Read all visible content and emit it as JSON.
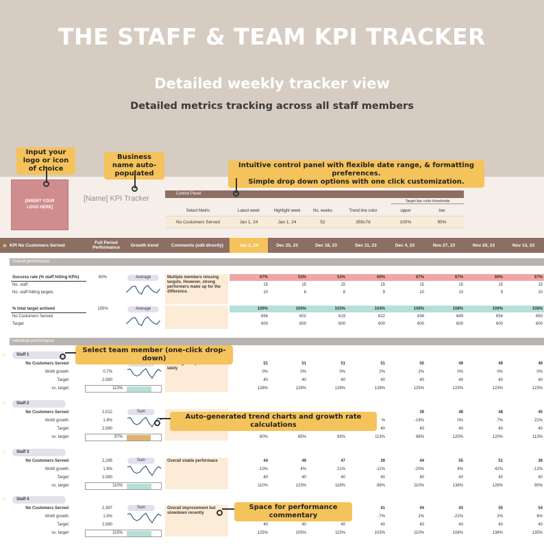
{
  "hero": {
    "title": "THE STAFF & TEAM KPI TRACKER",
    "subtitle": "Detailed weekly tracker view",
    "subtitle2": "Detailed metrics tracking across all staff members"
  },
  "callouts": {
    "logo": "Input your logo or icon of choice",
    "business_name": "Business name auto-populated",
    "control_panel_1": "Intuitive control panel with flexible date range, & formatting preferences.",
    "control_panel_2": "Simple drop down options with one click customization.",
    "team_member": "Select team member (one-click drop-down)",
    "trend": "Auto-generated trend charts and growth rate calculations",
    "commentary": "Space for performance commentary"
  },
  "logo_placeholder": "[INSERT YOUR LOGO HERE]",
  "tracker_name": "[Name] KPI Tracker",
  "control_panel": {
    "title": "Control Panel",
    "threshold_title": "Target bar color thresholds",
    "headers": [
      "Select Metric",
      "Latest week",
      "Highlight week",
      "No. weeks",
      "Trend line color",
      "upper",
      "low"
    ],
    "values": [
      "No Customers Served",
      "Jan 1, 24",
      "Jan 1, 24",
      "52",
      "355c7d",
      "100%",
      "95%"
    ]
  },
  "header": {
    "kpi": "KPI No Customers Served",
    "full_period": "Full Period Performance",
    "trend": "Growth trend",
    "comments": "Comments (edit directly)",
    "weeks": [
      "Jan 1, 24",
      "Dec 25, 23",
      "Dec 18, 23",
      "Dec 11, 23",
      "Dec 4, 23",
      "Nov 27, 23",
      "Nov 20, 23",
      "Nov 13, 23"
    ]
  },
  "overall": {
    "section": "Overall performance",
    "success_label": "Success rate (% staff hitting KPIs)",
    "success_full": "60%",
    "success_pill": "Average",
    "success_vals": [
      "67%",
      "53%",
      "53%",
      "60%",
      "67%",
      "67%",
      "60%",
      "67%"
    ],
    "nostaff_label": "No. staff",
    "nostaff_vals": [
      "15",
      "15",
      "15",
      "15",
      "15",
      "15",
      "15",
      "15"
    ],
    "hitting_label": "No. staff hitting targets",
    "hitting_vals": [
      "10",
      "8",
      "8",
      "9",
      "10",
      "10",
      "9",
      "10"
    ],
    "comment": "Multiple members missing targets. However, strong performers make up for the difference.",
    "total_label": "% total target achived",
    "total_full": "105%",
    "total_pill": "Average",
    "total_vals": [
      "109%",
      "100%",
      "103%",
      "104%",
      "106%",
      "108%",
      "109%",
      "108%"
    ],
    "served_label": "No Customers Served",
    "served_vals": [
      "656",
      "602",
      "619",
      "622",
      "638",
      "649",
      "654",
      "650"
    ],
    "target_label": "Target",
    "target_vals": [
      "600",
      "600",
      "600",
      "600",
      "600",
      "600",
      "600",
      "600"
    ]
  },
  "individual": {
    "section": "Individual performance",
    "row_labels": [
      "No Customers Served",
      "WoW growth",
      "Target",
      "vs. target"
    ],
    "staff": [
      {
        "name": "Staff 1",
        "pill": "Sum",
        "full": [
          "2,349",
          "0.7%",
          "2,080"
        ],
        "pct": "113%",
        "comment": "Meaningful improvement lately",
        "served": [
          "51",
          "51",
          "51",
          "51",
          "50",
          "49",
          "49",
          "49"
        ],
        "wow": [
          "0%",
          "0%",
          "0%",
          "2%",
          "2%",
          "0%",
          "0%",
          "0%"
        ],
        "target": [
          "40",
          "40",
          "40",
          "40",
          "40",
          "40",
          "40",
          "40"
        ],
        "vs": [
          "128%",
          "128%",
          "128%",
          "128%",
          "125%",
          "123%",
          "123%",
          "123%"
        ]
      },
      {
        "name": "Staff 2",
        "pill": "Sum",
        "full": [
          "2,012",
          "1.9%",
          "2,080"
        ],
        "pct": "97%",
        "comment": "",
        "served": [
          "",
          "",
          "",
          "",
          "39",
          "48",
          "48",
          "45"
        ],
        "wow": [
          "",
          "",
          "",
          "%",
          "-19%",
          "0%",
          "7%",
          "22%"
        ],
        "target": [
          "40",
          "40",
          "40",
          "40",
          "40",
          "40",
          "40",
          "40"
        ],
        "vs": [
          "80%",
          "85%",
          "93%",
          "113%",
          "98%",
          "120%",
          "120%",
          "113%"
        ]
      },
      {
        "name": "Staff 3",
        "pill": "Sum",
        "full": [
          "2,295",
          "1.8%",
          "2,080"
        ],
        "pct": "110%",
        "comment": "Overall stable performace",
        "served": [
          "44",
          "49",
          "47",
          "39",
          "44",
          "55",
          "51",
          "36"
        ],
        "wow": [
          "-10%",
          "4%",
          "21%",
          "-11%",
          "-20%",
          "8%",
          "42%",
          "-12%"
        ],
        "target": [
          "40",
          "40",
          "40",
          "40",
          "40",
          "40",
          "40",
          "40"
        ],
        "vs": [
          "110%",
          "123%",
          "118%",
          "98%",
          "110%",
          "138%",
          "128%",
          "90%"
        ]
      },
      {
        "name": "Staff 4",
        "pill": "Sum",
        "full": [
          "2,397",
          "1.5%",
          "2,080"
        ],
        "pct": "115%",
        "comment": "Overall improvement but slowdown recently",
        "served": [
          "",
          "",
          "",
          "41",
          "44",
          "43",
          "55",
          "54"
        ],
        "wow": [
          "19%",
          "-9%",
          "12%",
          "-7%",
          "2%",
          "-22%",
          "2%",
          "6%"
        ],
        "target": [
          "40",
          "40",
          "40",
          "40",
          "40",
          "40",
          "40",
          "40"
        ],
        "vs": [
          "125%",
          "105%",
          "115%",
          "103%",
          "110%",
          "108%",
          "138%",
          "135%"
        ]
      }
    ]
  },
  "colors": {
    "bg": "#d6ccc2",
    "header": "#8d6e63",
    "accent": "#f5c35b",
    "pink": "#f2a5a5",
    "teal": "#b6e0d7",
    "trend": "#355c7d"
  }
}
